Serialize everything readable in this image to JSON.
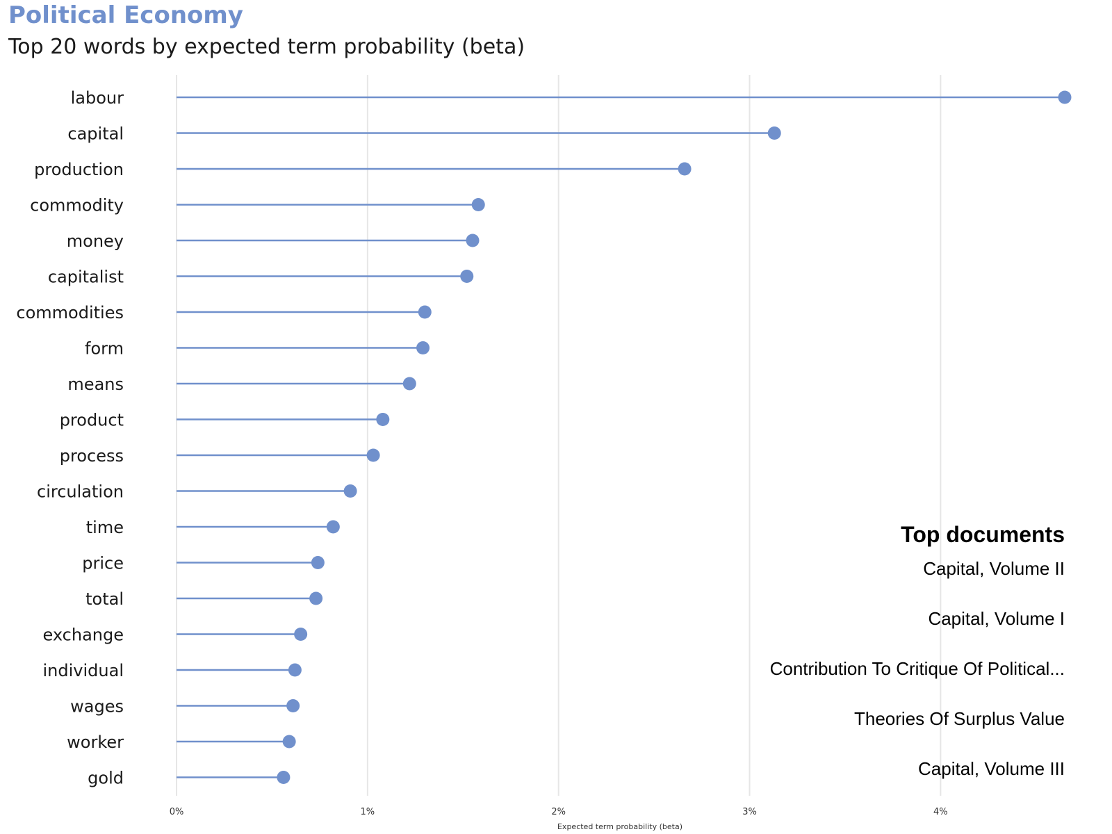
{
  "title": "Political Economy",
  "subtitle": "Top 20 words by expected term probability (beta)",
  "chart_data": {
    "type": "lollipop",
    "categories": [
      "labour",
      "capital",
      "production",
      "commodity",
      "money",
      "capitalist",
      "commodities",
      "form",
      "means",
      "product",
      "process",
      "circulation",
      "time",
      "price",
      "total",
      "exchange",
      "individual",
      "wages",
      "worker",
      "gold"
    ],
    "values": [
      0.0465,
      0.0313,
      0.0266,
      0.0158,
      0.0155,
      0.0152,
      0.013,
      0.0129,
      0.0122,
      0.0108,
      0.0103,
      0.0091,
      0.0082,
      0.0074,
      0.0073,
      0.0065,
      0.0062,
      0.0061,
      0.0059,
      0.0056
    ],
    "xlabel": "Expected term probability (beta)",
    "xlim": [
      0,
      0.0465
    ],
    "xticks": [
      0,
      0.01,
      0.02,
      0.03,
      0.04
    ],
    "xtick_labels": [
      "0%",
      "1%",
      "2%",
      "3%",
      "4%"
    ],
    "grid": "vertical",
    "color": "#7090cc"
  },
  "top_documents": {
    "heading": "Top documents",
    "items": [
      "Capital, Volume II",
      "Capital, Volume I",
      "Contribution To Critique Of Political...",
      "Theories Of Surplus Value",
      "Capital, Volume III"
    ]
  }
}
